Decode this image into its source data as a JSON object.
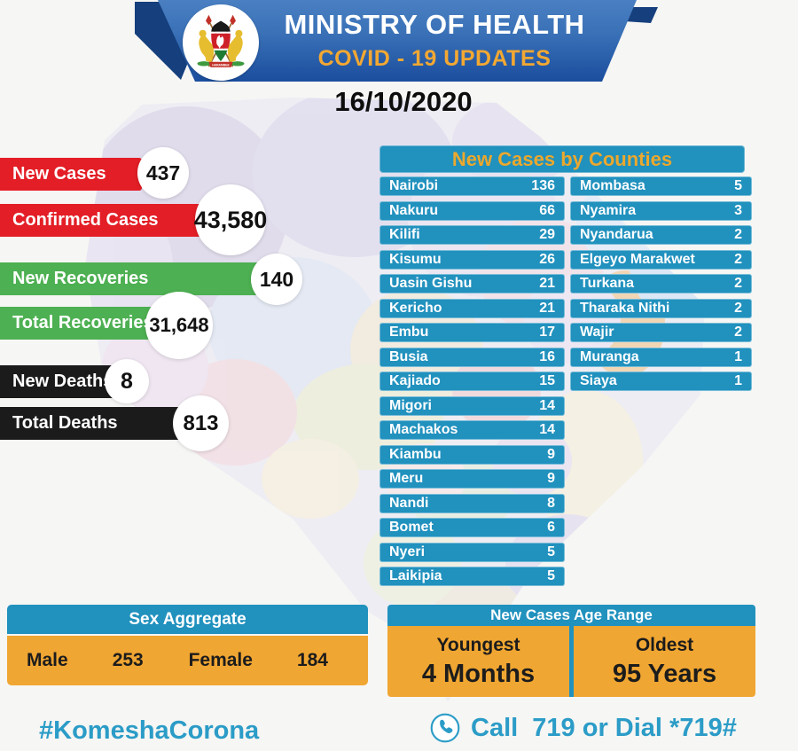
{
  "header": {
    "title": "MINISTRY OF HEALTH",
    "subtitle": "COVID - 19 UPDATES",
    "date": "16/10/2020",
    "emblem": "kenya-coat-of-arms"
  },
  "stats": [
    {
      "label": "New Cases",
      "value": "437",
      "color": "#e31e26"
    },
    {
      "label": "Confirmed Cases",
      "value": "43,580",
      "color": "#e31e26"
    },
    {
      "label": "New Recoveries",
      "value": "140",
      "color": "#4db052"
    },
    {
      "label": "Total Recoveries",
      "value": "31,648",
      "color": "#4db052"
    },
    {
      "label": "New Deaths",
      "value": "8",
      "color": "#1b1b1b"
    },
    {
      "label": "Total Deaths",
      "value": "813",
      "color": "#1b1b1b"
    }
  ],
  "counties": {
    "title": "New Cases by Counties",
    "left": [
      {
        "name": "Nairobi",
        "value": "136"
      },
      {
        "name": "Nakuru",
        "value": "66"
      },
      {
        "name": "Kilifi",
        "value": "29"
      },
      {
        "name": "Kisumu",
        "value": "26"
      },
      {
        "name": "Uasin Gishu",
        "value": "21"
      },
      {
        "name": "Kericho",
        "value": "21"
      },
      {
        "name": "Embu",
        "value": "17"
      },
      {
        "name": "Busia",
        "value": "16"
      },
      {
        "name": "Kajiado",
        "value": "15"
      },
      {
        "name": "Migori",
        "value": "14"
      },
      {
        "name": "Machakos",
        "value": "14"
      },
      {
        "name": "Kiambu",
        "value": "9"
      },
      {
        "name": "Meru",
        "value": "9"
      },
      {
        "name": "Nandi",
        "value": "8"
      },
      {
        "name": "Bomet",
        "value": "6"
      },
      {
        "name": "Nyeri",
        "value": "5"
      },
      {
        "name": "Laikipia",
        "value": "5"
      }
    ],
    "right": [
      {
        "name": "Mombasa",
        "value": "5"
      },
      {
        "name": "Nyamira",
        "value": "3"
      },
      {
        "name": "Nyandarua",
        "value": "2"
      },
      {
        "name": "Elgeyo Marakwet",
        "value": "2"
      },
      {
        "name": "Turkana",
        "value": "2"
      },
      {
        "name": "Tharaka Nithi",
        "value": "2"
      },
      {
        "name": "Wajir",
        "value": "2"
      },
      {
        "name": "Muranga",
        "value": "1"
      },
      {
        "name": "Siaya",
        "value": "1"
      }
    ]
  },
  "sex_aggregate": {
    "title": "Sex Aggregate",
    "male_label": "Male",
    "male_value": "253",
    "female_label": "Female",
    "female_value": "184"
  },
  "age_range": {
    "title": "New Cases Age Range",
    "youngest_label": "Youngest",
    "youngest_value": "4 Months",
    "oldest_label": "Oldest",
    "oldest_value": "95 Years"
  },
  "footer": {
    "hashtag": "#KomeshaCorona",
    "call_text": "Call  719 or Dial *719#",
    "phone_icon": "phone-icon"
  },
  "colors": {
    "cases_red": "#e31e26",
    "recoveries_green": "#4db052",
    "deaths_black": "#1b1b1b",
    "panel_teal": "#2191be",
    "panel_gold": "#f0a632",
    "banner_blue_top": "#4a80c2",
    "banner_blue_bottom": "#1b4e9e",
    "title_gold": "#f2a832",
    "footer_teal": "#2b9cc7"
  }
}
